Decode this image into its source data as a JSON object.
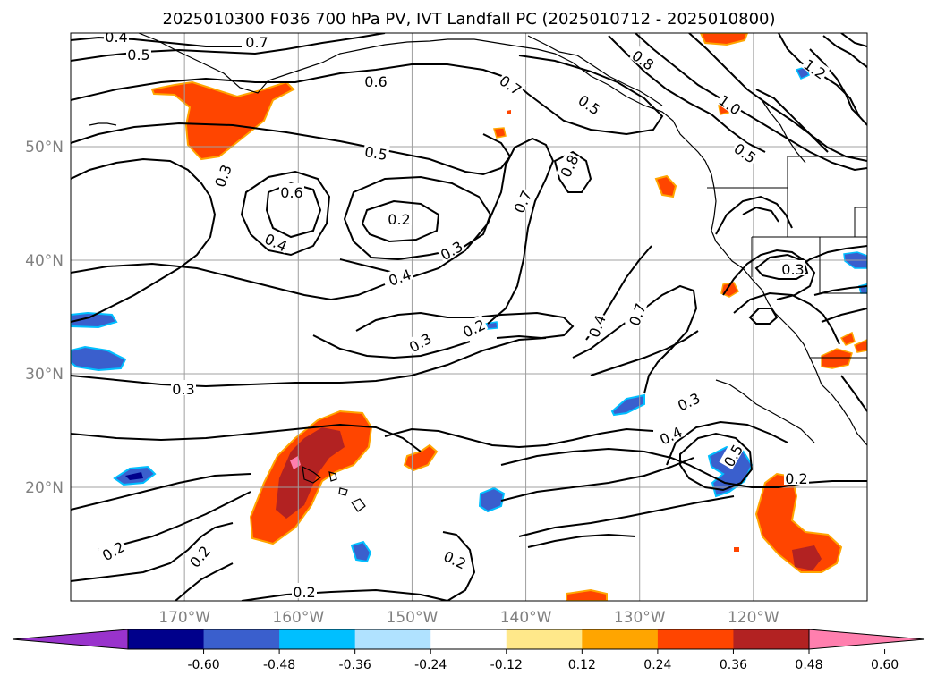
{
  "title": "2025010300 F036 700 hPa PV, IVT Landfall PC (2025010712 - 2025010800)",
  "map": {
    "projection": "PlateCarree",
    "lon_range": [
      -180,
      -110
    ],
    "lat_range": [
      10,
      60
    ],
    "grid": true,
    "lat_ticks": [
      {
        "value": 50,
        "label": "50°N"
      },
      {
        "value": 40,
        "label": "40°N"
      },
      {
        "value": 30,
        "label": "30°N"
      },
      {
        "value": 20,
        "label": "20°N"
      }
    ],
    "lon_ticks": [
      {
        "value": -170,
        "label": "170°W"
      },
      {
        "value": -160,
        "label": "160°W"
      },
      {
        "value": -150,
        "label": "150°W"
      },
      {
        "value": -140,
        "label": "140°W"
      },
      {
        "value": -130,
        "label": "130°W"
      },
      {
        "value": -120,
        "label": "120°W"
      }
    ]
  },
  "colorbar": {
    "orientation": "horizontal",
    "extend": "both",
    "ticks": [
      "-0.60",
      "-0.48",
      "-0.36",
      "-0.24",
      "-0.12",
      "0.12",
      "0.24",
      "0.36",
      "0.48",
      "0.60"
    ],
    "colors": [
      "#9933cc",
      "#00008b",
      "#3a5fcd",
      "#00bfff",
      "#b0e2ff",
      "#ffffff",
      "#ffe88a",
      "#ffa500",
      "#ff4500",
      "#b22222",
      "#ff7fae"
    ]
  },
  "contour_labels": [
    "0.4",
    "0.5",
    "0.7",
    "0.6",
    "0.8",
    "1.0",
    "1.2",
    "0.7",
    "0.5",
    "0.6",
    "0.5",
    "0.3",
    "0.2",
    "0.3",
    "0.4",
    "0.7",
    "0.8",
    "0.5",
    "0.4",
    "0.3",
    "0.3",
    "0.3",
    "0.2",
    "0.4",
    "0.7",
    "0.3",
    "0.4",
    "0.5",
    "0.2",
    "0.2",
    "0.2",
    "0.2",
    "0.2"
  ]
}
